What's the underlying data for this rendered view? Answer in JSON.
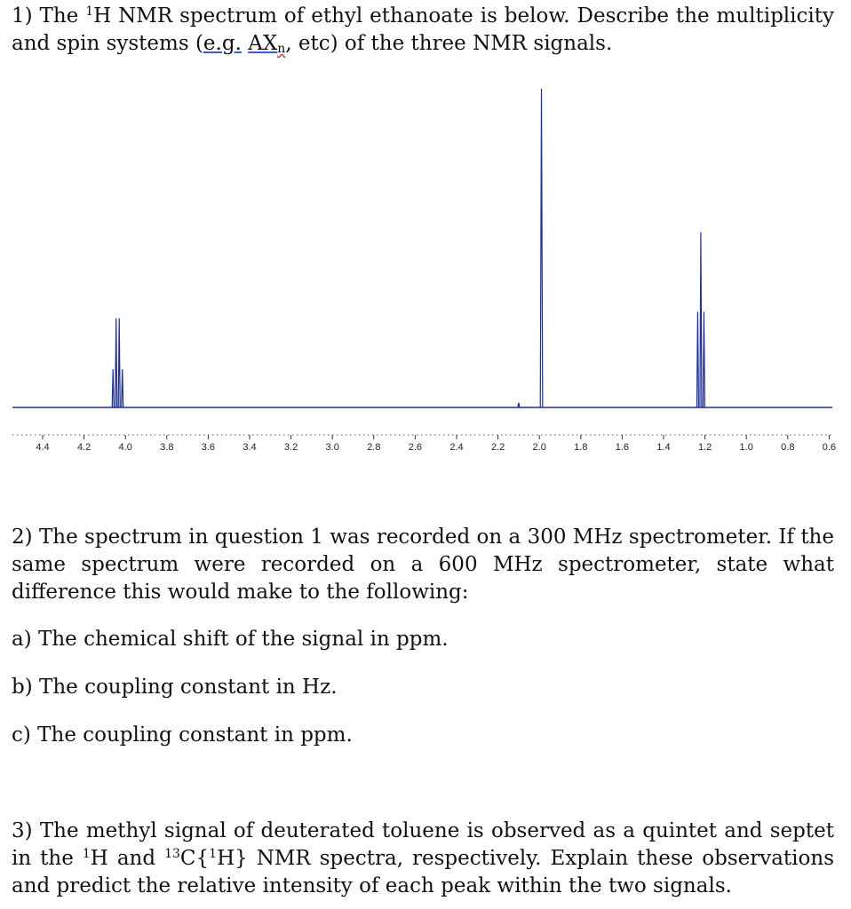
{
  "q1": {
    "p1": "1) The ",
    "sup1": "1",
    "p2": "H NMR spectrum of ethyl ethanoate is below.  Describe the multiplicity and spin systems (",
    "eg": "e.g.",
    "p3": " ",
    "ax": "AX",
    "axsub": "n",
    "p4": ", etc) of the three NMR signals."
  },
  "chart_data": {
    "type": "line",
    "title": "",
    "xlabel": "",
    "ylabel": "",
    "x_reversed": true,
    "xlim": [
      4.45,
      0.6
    ],
    "ticks": [
      "4.4",
      "4.2",
      "4.0",
      "3.8",
      "3.6",
      "3.4",
      "3.2",
      "3.0",
      "2.8",
      "2.6",
      "2.4",
      "2.2",
      "2.0",
      "1.8",
      "1.6",
      "1.4",
      "1.2",
      "1.0",
      "0.8",
      "0.6"
    ],
    "tick_values": [
      4.4,
      4.2,
      4.0,
      3.8,
      3.6,
      3.4,
      3.2,
      3.0,
      2.8,
      2.6,
      2.4,
      2.2,
      2.0,
      1.8,
      1.6,
      1.4,
      1.2,
      1.0,
      0.8,
      0.6
    ],
    "series": [
      {
        "peaks": [
          {
            "ppm": 4.06,
            "intensity": 0.12
          },
          {
            "ppm": 4.045,
            "intensity": 0.28
          },
          {
            "ppm": 4.03,
            "intensity": 0.28
          },
          {
            "ppm": 4.015,
            "intensity": 0.12
          },
          {
            "ppm": 1.99,
            "intensity": 1.0
          },
          {
            "ppm": 1.235,
            "intensity": 0.3
          },
          {
            "ppm": 1.22,
            "intensity": 0.55
          },
          {
            "ppm": 1.205,
            "intensity": 0.3
          },
          {
            "ppm": 2.1,
            "intensity": 0.015
          }
        ]
      }
    ],
    "line_color": "#1f2f8f"
  },
  "q2": {
    "p1": "2) The spectrum in question 1 was recorded on a 300 MHz spectrometer.  If the same spectrum were recorded on a 600 MHz spectrometer, state what difference this would make to the following:",
    "a": "a) The chemical shift of the signal in ppm.",
    "b": "b) The coupling constant in Hz.",
    "c": "c) The coupling constant in ppm."
  },
  "q3": {
    "p1": "3) The methyl signal of deuterated toluene is observed as a quintet and septet in the ",
    "sup1": "1",
    "p2": "H and ",
    "sup2": "13",
    "p3": "C{",
    "sup3": "1",
    "p4": "H} NMR spectra, respectively. Explain these observations and predict the relative intensity of each peak within the two signals."
  }
}
